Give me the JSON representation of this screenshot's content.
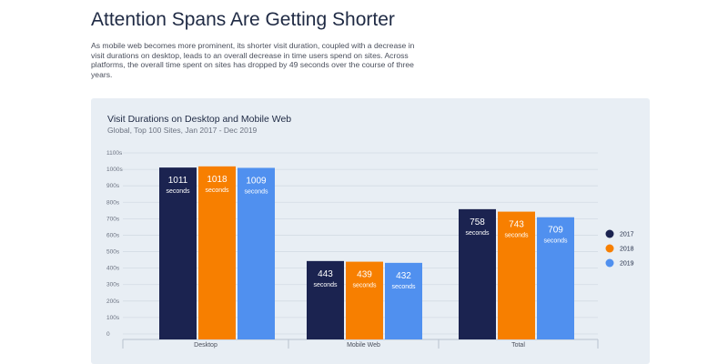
{
  "page": {
    "headline": "Attention Spans Are Getting Shorter",
    "intro": "As mobile web becomes more prominent, its shorter visit duration, coupled with a decrease in visit durations on desktop, leads to an overall decrease in time users spend on sites. Across platforms, the overall time spent on sites has dropped by 49 seconds over the course of three years."
  },
  "chart_data": {
    "type": "bar",
    "title": "Visit Durations on Desktop and Mobile Web",
    "subtitle": "Global, Top 100 Sites, Jan 2017 - Dec 2019",
    "categories": [
      "Desktop",
      "Mobile Web",
      "Total"
    ],
    "series": [
      {
        "name": "2017",
        "color": "#1b2350",
        "values": [
          1011,
          443,
          758
        ]
      },
      {
        "name": "2018",
        "color": "#f77f00",
        "values": [
          1018,
          439,
          743
        ]
      },
      {
        "name": "2019",
        "color": "#5090ef",
        "values": [
          1009,
          432,
          709
        ]
      }
    ],
    "value_unit_label": "seconds",
    "ylim": [
      0,
      1100
    ],
    "yticks": [
      0,
      100,
      200,
      300,
      400,
      500,
      600,
      700,
      800,
      900,
      1000,
      1100
    ],
    "ytick_labels": [
      "0",
      "100s",
      "200s",
      "300s",
      "400s",
      "500s",
      "600s",
      "700s",
      "800s",
      "900s",
      "1000s",
      "1100s"
    ],
    "grid": true,
    "legend_position": "right"
  }
}
